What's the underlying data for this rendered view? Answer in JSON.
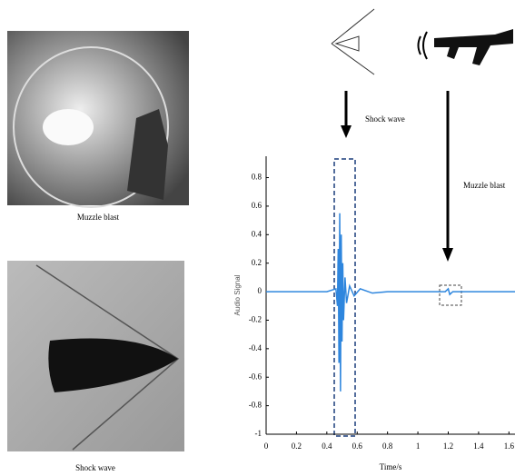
{
  "captions": {
    "top_photo": "Muzzle blast",
    "bottom_photo": "Shock wave"
  },
  "chart_data": {
    "type": "line",
    "x_label": "Time/s",
    "y_label": "Audio Signal",
    "annotations": {
      "shock": "Shock wave",
      "muzzle": "Muzzle blast"
    },
    "x": [
      0,
      0.4,
      0.46,
      0.47,
      0.475,
      0.48,
      0.485,
      0.49,
      0.495,
      0.5,
      0.505,
      0.51,
      0.52,
      0.53,
      0.55,
      0.58,
      0.62,
      0.7,
      0.8,
      1.18,
      1.2,
      1.21,
      1.23,
      1.64
    ],
    "values": [
      0,
      0,
      0.02,
      -0.1,
      0.3,
      -0.5,
      0.55,
      -0.7,
      0.4,
      -0.35,
      0.2,
      -0.2,
      0.1,
      -0.08,
      0.04,
      -0.03,
      0.02,
      -0.01,
      0,
      0,
      0.02,
      -0.02,
      0,
      0
    ],
    "color": "#2e86de",
    "xlim": [
      0,
      1.64
    ],
    "ylim": [
      -1,
      0.95
    ],
    "xticks": [
      0,
      0.2,
      0.4,
      0.6,
      0.8,
      1,
      1.2,
      1.4,
      1.6
    ],
    "yticks": [
      -1,
      -0.8,
      -0.6,
      -0.4,
      -0.2,
      0,
      0.2,
      0.4,
      0.6,
      0.8
    ]
  }
}
